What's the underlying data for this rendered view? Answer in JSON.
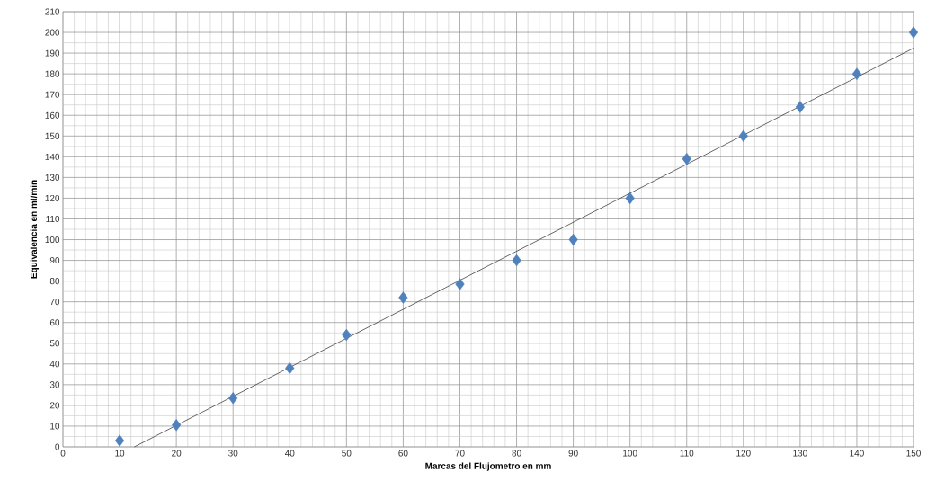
{
  "chart_data": {
    "type": "scatter",
    "xlabel": "Marcas del Flujometro en mm",
    "ylabel": "Equivalencia en ml/min",
    "x": [
      10,
      20,
      30,
      40,
      50,
      60,
      70,
      80,
      90,
      100,
      110,
      120,
      130,
      140,
      150
    ],
    "series": [
      {
        "color": "#4f81bd",
        "marker": "diamond",
        "values": [
          3,
          10.5,
          23.5,
          38,
          54,
          72,
          78.5,
          90,
          100,
          120,
          139,
          150,
          164,
          180,
          200
        ]
      },
      {
        "type": "line",
        "x": [
          12.6,
          150
        ],
        "values": [
          0,
          192.4
        ],
        "color": "#404040"
      }
    ],
    "grid": true,
    "xlim": [
      0,
      150
    ],
    "ylim": [
      0,
      210
    ],
    "xticks": [
      0,
      10,
      20,
      30,
      40,
      50,
      60,
      70,
      80,
      90,
      100,
      110,
      120,
      130,
      140,
      150
    ],
    "yticks": [
      0,
      10,
      20,
      30,
      40,
      50,
      60,
      70,
      80,
      90,
      100,
      110,
      120,
      130,
      140,
      150,
      160,
      170,
      180,
      190,
      200,
      210
    ]
  }
}
